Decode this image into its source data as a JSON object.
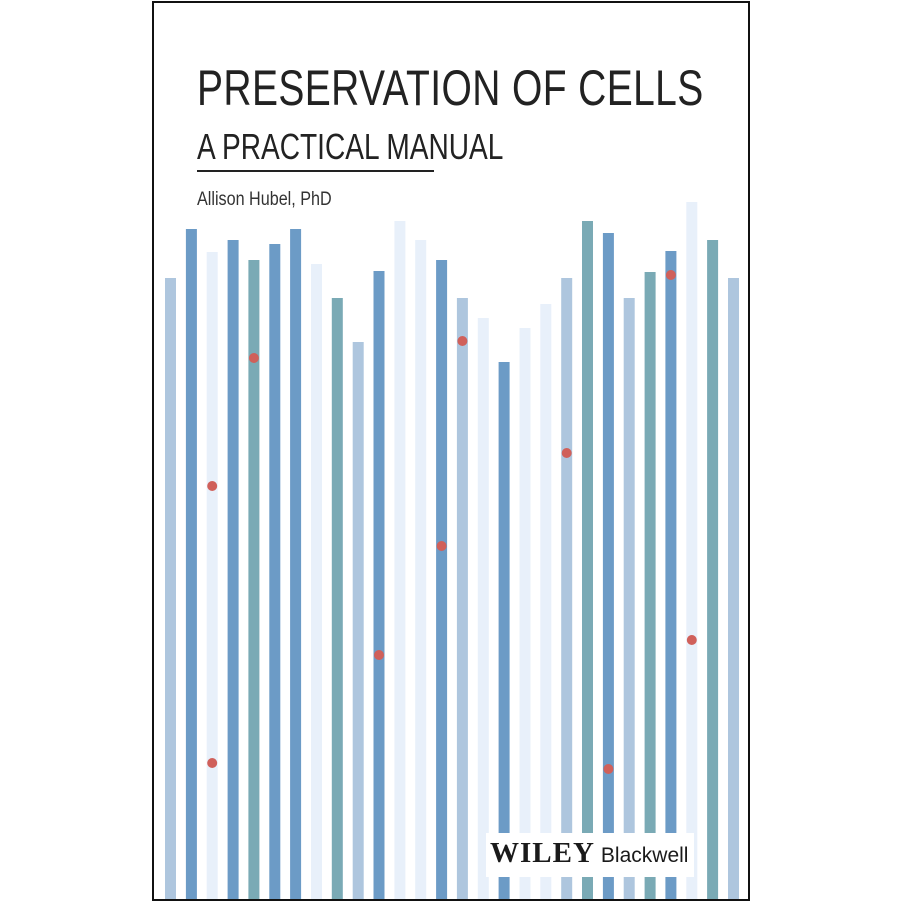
{
  "cover": {
    "title": "PRESERVATION OF CELLS",
    "subtitle": "A PRACTICAL MANUAL",
    "author": "Allison Hubel, PhD",
    "publisher_wiley": "WILEY",
    "publisher_imprint": "Blackwell"
  },
  "colors": {
    "dark_blue": "#6c9bc6",
    "light_blue": "#aec6de",
    "pale_blue": "#e8f0fa",
    "teal": "#7aaab5",
    "dot_red": "#d0605a",
    "text": "#222222",
    "border": "#111111"
  },
  "chart_data": {
    "type": "bar",
    "bars": [
      {
        "top": 276,
        "color": "light_blue"
      },
      {
        "top": 227,
        "color": "dark_blue"
      },
      {
        "top": 250,
        "color": "pale_blue"
      },
      {
        "top": 238,
        "color": "dark_blue"
      },
      {
        "top": 258,
        "color": "teal"
      },
      {
        "top": 242,
        "color": "dark_blue"
      },
      {
        "top": 227,
        "color": "dark_blue"
      },
      {
        "top": 262,
        "color": "pale_blue"
      },
      {
        "top": 296,
        "color": "teal"
      },
      {
        "top": 340,
        "color": "light_blue"
      },
      {
        "top": 269,
        "color": "dark_blue"
      },
      {
        "top": 219,
        "color": "pale_blue"
      },
      {
        "top": 238,
        "color": "pale_blue"
      },
      {
        "top": 258,
        "color": "dark_blue"
      },
      {
        "top": 296,
        "color": "light_blue"
      },
      {
        "top": 316,
        "color": "pale_blue"
      },
      {
        "top": 360,
        "color": "dark_blue"
      },
      {
        "top": 326,
        "color": "pale_blue"
      },
      {
        "top": 302,
        "color": "pale_blue"
      },
      {
        "top": 276,
        "color": "light_blue"
      },
      {
        "top": 219,
        "color": "teal"
      },
      {
        "top": 231,
        "color": "dark_blue"
      },
      {
        "top": 296,
        "color": "light_blue"
      },
      {
        "top": 270,
        "color": "teal"
      },
      {
        "top": 249,
        "color": "dark_blue"
      },
      {
        "top": 200,
        "color": "pale_blue"
      },
      {
        "top": 238,
        "color": "teal"
      },
      {
        "top": 276,
        "color": "light_blue"
      }
    ],
    "dots": [
      {
        "bar": 2,
        "y": 484
      },
      {
        "bar": 2,
        "y": 761
      },
      {
        "bar": 4,
        "y": 356
      },
      {
        "bar": 10,
        "y": 653
      },
      {
        "bar": 13,
        "y": 544
      },
      {
        "bar": 14,
        "y": 339
      },
      {
        "bar": 19,
        "y": 451
      },
      {
        "bar": 21,
        "y": 767
      },
      {
        "bar": 24,
        "y": 273
      },
      {
        "bar": 25,
        "y": 638
      }
    ]
  }
}
